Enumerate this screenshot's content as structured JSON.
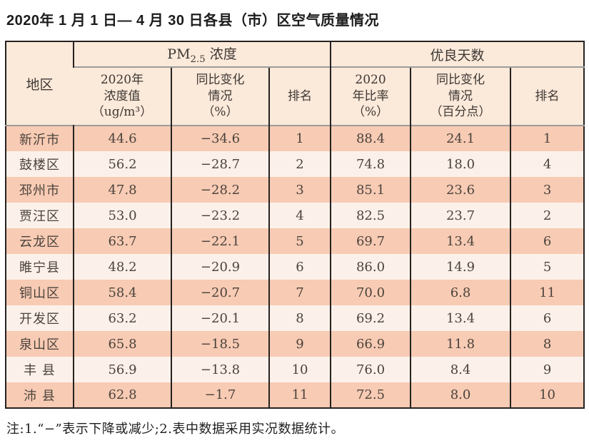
{
  "title": "2020年 1 月 1 日— 4 月 30 日各县（市）区空气质量情况",
  "table": {
    "header": {
      "region": "地区",
      "pm25_group": {
        "prefix": "PM",
        "subscript": "2.5",
        "suffix": " 浓度"
      },
      "good_days_group": "优良天数",
      "pm_value": "2020年\n浓度值\n（ug/m³）",
      "pm_change": "同比变化\n情况\n（%）",
      "pm_rank": "排名",
      "good_ratio": "2020\n年比率\n（%）",
      "good_change": "同比变化\n情况\n（百分点）",
      "good_rank": "排名"
    },
    "rows": [
      {
        "region": "新沂市",
        "pm_value": "44.6",
        "pm_change": "−34.6",
        "pm_rank": "1",
        "good_ratio": "88.4",
        "good_change": "24.1",
        "good_rank": "1"
      },
      {
        "region": "鼓楼区",
        "pm_value": "56.2",
        "pm_change": "−28.7",
        "pm_rank": "2",
        "good_ratio": "74.8",
        "good_change": "18.0",
        "good_rank": "4"
      },
      {
        "region": "邳州市",
        "pm_value": "47.8",
        "pm_change": "−28.2",
        "pm_rank": "3",
        "good_ratio": "85.1",
        "good_change": "23.6",
        "good_rank": "3"
      },
      {
        "region": "贾汪区",
        "pm_value": "53.0",
        "pm_change": "−23.2",
        "pm_rank": "4",
        "good_ratio": "82.5",
        "good_change": "23.7",
        "good_rank": "2"
      },
      {
        "region": "云龙区",
        "pm_value": "63.7",
        "pm_change": "−22.1",
        "pm_rank": "5",
        "good_ratio": "69.7",
        "good_change": "13.4",
        "good_rank": "6"
      },
      {
        "region": "睢宁县",
        "pm_value": "48.2",
        "pm_change": "−20.9",
        "pm_rank": "6",
        "good_ratio": "86.0",
        "good_change": "14.9",
        "good_rank": "5"
      },
      {
        "region": "铜山区",
        "pm_value": "58.4",
        "pm_change": "−20.7",
        "pm_rank": "7",
        "good_ratio": "70.0",
        "good_change": "6.8",
        "good_rank": "11"
      },
      {
        "region": "开发区",
        "pm_value": "63.2",
        "pm_change": "−20.1",
        "pm_rank": "8",
        "good_ratio": "69.2",
        "good_change": "13.4",
        "good_rank": "6"
      },
      {
        "region": "泉山区",
        "pm_value": "65.8",
        "pm_change": "−18.5",
        "pm_rank": "9",
        "good_ratio": "66.9",
        "good_change": "11.8",
        "good_rank": "8"
      },
      {
        "region": "丰 县",
        "pm_value": "56.9",
        "pm_change": "−13.8",
        "pm_rank": "10",
        "good_ratio": "76.0",
        "good_change": "8.4",
        "good_rank": "9"
      },
      {
        "region": "沛 县",
        "pm_value": "62.8",
        "pm_change": "−1.7",
        "pm_rank": "11",
        "good_ratio": "72.5",
        "good_change": "8.0",
        "good_rank": "10"
      }
    ]
  },
  "note": "注:1.“−”表示下降或减少;2.表中数据采用实况数据统计。",
  "colors": {
    "row_odd_bg": "#f8cbb4",
    "row_even_bg": "#fcf1ea",
    "header_bg": "#fbe9da",
    "border_dark": "#262220",
    "border_gray": "#9b9b9b",
    "text_dark": "#4a433c"
  }
}
